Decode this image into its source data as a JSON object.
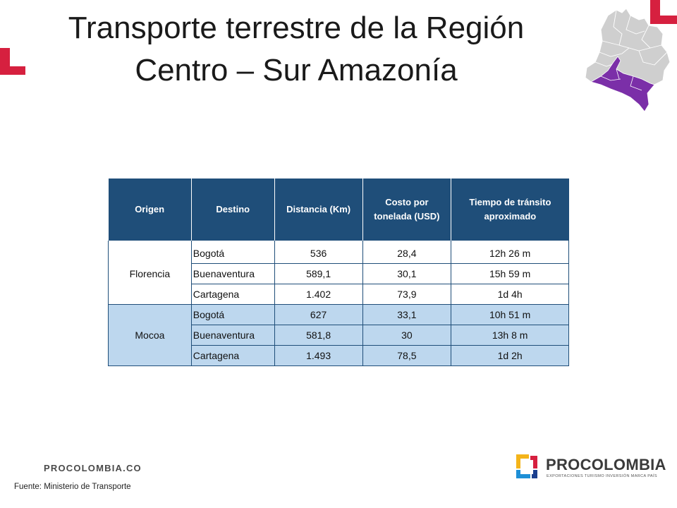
{
  "title_line1": "Transporte terrestre de la Región",
  "title_line2": "Centro – Sur Amazonía",
  "table": {
    "headers": [
      "Origen",
      "Destino",
      "Distancia (Km)",
      "Costo por tonelada (USD)",
      "Tiempo de tránsito aproximado"
    ],
    "groups": [
      {
        "origin": "Florencia",
        "rows": [
          {
            "destino": "Bogotá",
            "distancia": "536",
            "costo": "28,4",
            "tiempo": "12h 26 m"
          },
          {
            "destino": "Buenaventura",
            "distancia": "589,1",
            "costo": "30,1",
            "tiempo": "15h 59 m"
          },
          {
            "destino": "Cartagena",
            "distancia": "1.402",
            "costo": "73,9",
            "tiempo": "1d  4h"
          }
        ]
      },
      {
        "origin": "Mocoa",
        "rows": [
          {
            "destino": "Bogotá",
            "distancia": "627",
            "costo": "33,1",
            "tiempo": "10h 51 m"
          },
          {
            "destino": "Buenaventura",
            "distancia": "581,8",
            "costo": "30",
            "tiempo": "13h 8 m"
          },
          {
            "destino": "Cartagena",
            "distancia": "1.493",
            "costo": "78,5",
            "tiempo": "1d  2h"
          }
        ]
      }
    ]
  },
  "footer": {
    "website": "PROCOLOMBIA.CO",
    "source": "Fuente: Ministerio de Transporte",
    "brand_name": "PROCOLOMBIA",
    "brand_tagline": "EXPORTACIONES TURISMO INVERSIÓN MARCA PAÍS"
  },
  "colors": {
    "header_bg": "#1f4e79",
    "alt_row_bg": "#bdd7ee",
    "accent_red": "#d6203f",
    "region_purple": "#7b2fa8",
    "map_gray": "#c8c8c8"
  }
}
